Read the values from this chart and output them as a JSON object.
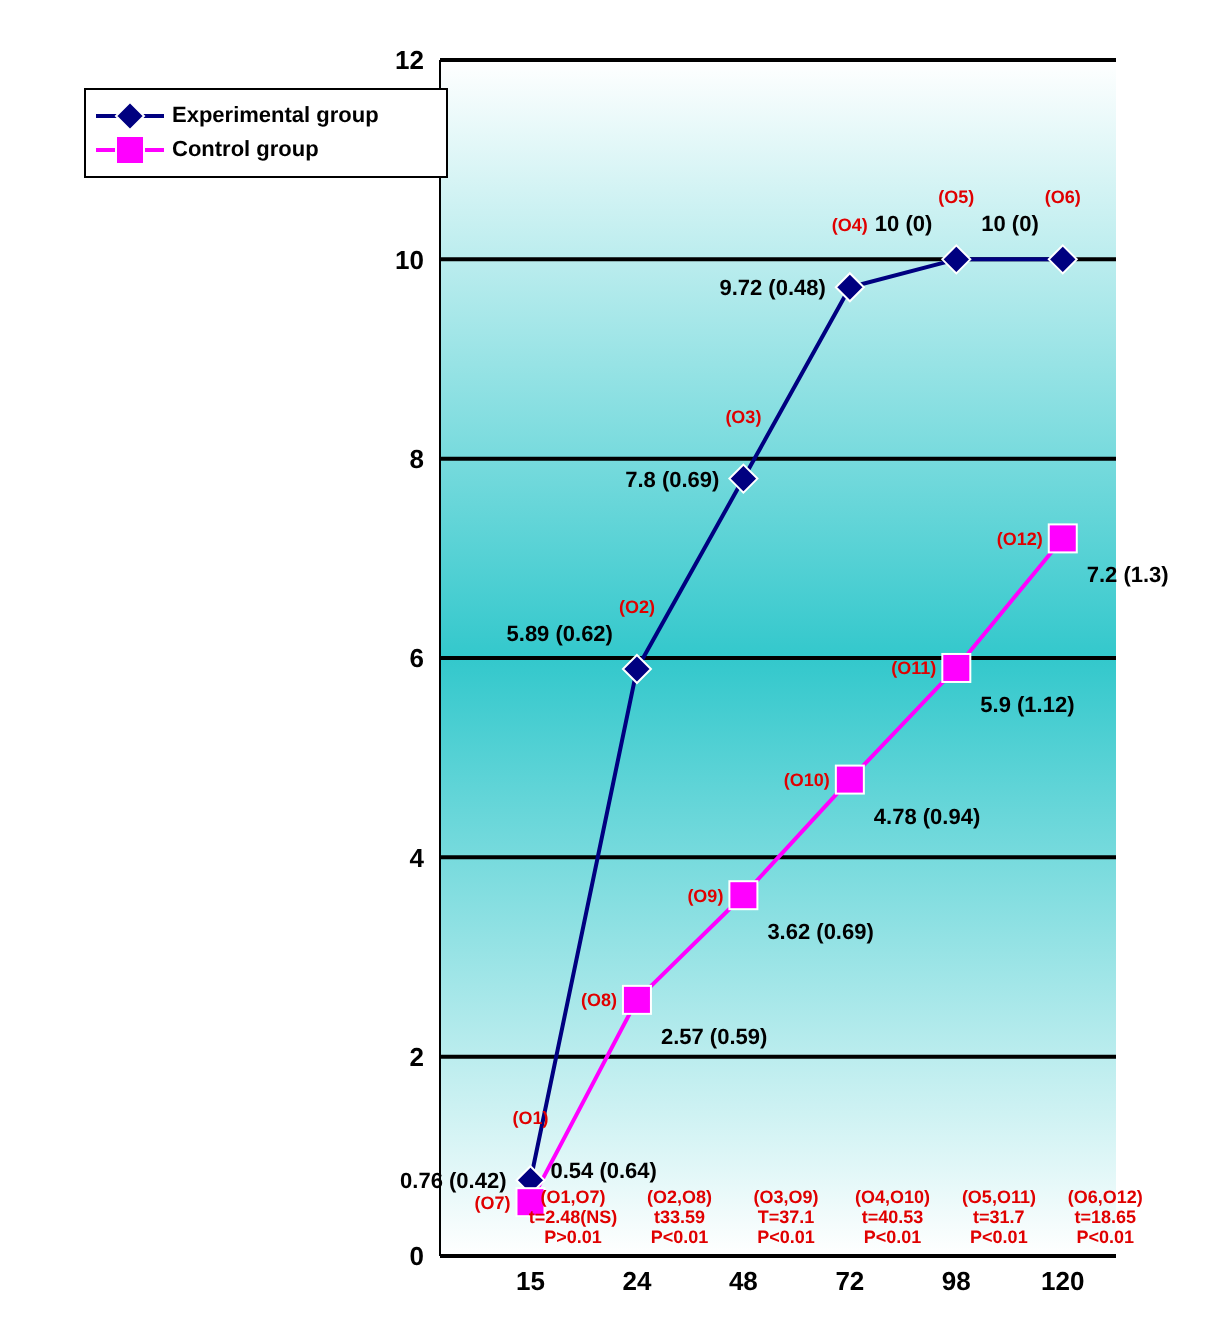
{
  "chart_data": {
    "type": "line",
    "categories": [
      "15",
      "24",
      "48",
      "72",
      "98",
      "120"
    ],
    "series": [
      {
        "name": "Experimental group",
        "color": "#000080",
        "marker": "diamond",
        "values": [
          0.76,
          5.89,
          7.8,
          9.72,
          10,
          10
        ],
        "value_labels": [
          "0.76 (0.42)",
          "5.89 (0.62)",
          "7.8 (0.69)",
          "9.72 (0.48)",
          "10 (0)",
          "10 (0)"
        ]
      },
      {
        "name": "Control group",
        "color": "#ff00ff",
        "marker": "square",
        "values": [
          0.54,
          2.57,
          3.62,
          4.78,
          5.9,
          7.2
        ],
        "value_labels": [
          "0.54 (0.64)",
          "2.57 (0.59)",
          "3.62 (0.69)",
          "4.78 (0.94)",
          "5.9 (1.12)",
          "7.2 (1.3)"
        ]
      }
    ],
    "ylim": [
      0,
      12
    ],
    "yticks": [
      0,
      2,
      4,
      6,
      8,
      10,
      12
    ],
    "grid": "y",
    "legend": "top left",
    "annotations": [
      "(O1)",
      "(O2)",
      "(O3)",
      "(O4)",
      "(O5)",
      "(O6)",
      "(O7)",
      "(O8)",
      "(O9)",
      "(O10)",
      "(O11)",
      "(O12)",
      "(O1,O7)",
      "t=2.48(NS)",
      "P>0.01",
      "(O2,O8)",
      "t33.59",
      "P<0.01",
      "(O3,O9)",
      "T=37.1",
      "P<0.01",
      "(O4,O10)",
      "t=40.53",
      "P<0.01",
      "(O5,O11)",
      "t=31.7",
      "P<0.01",
      "(O6,O12)",
      "t=18.65",
      "P<0.01"
    ]
  }
}
